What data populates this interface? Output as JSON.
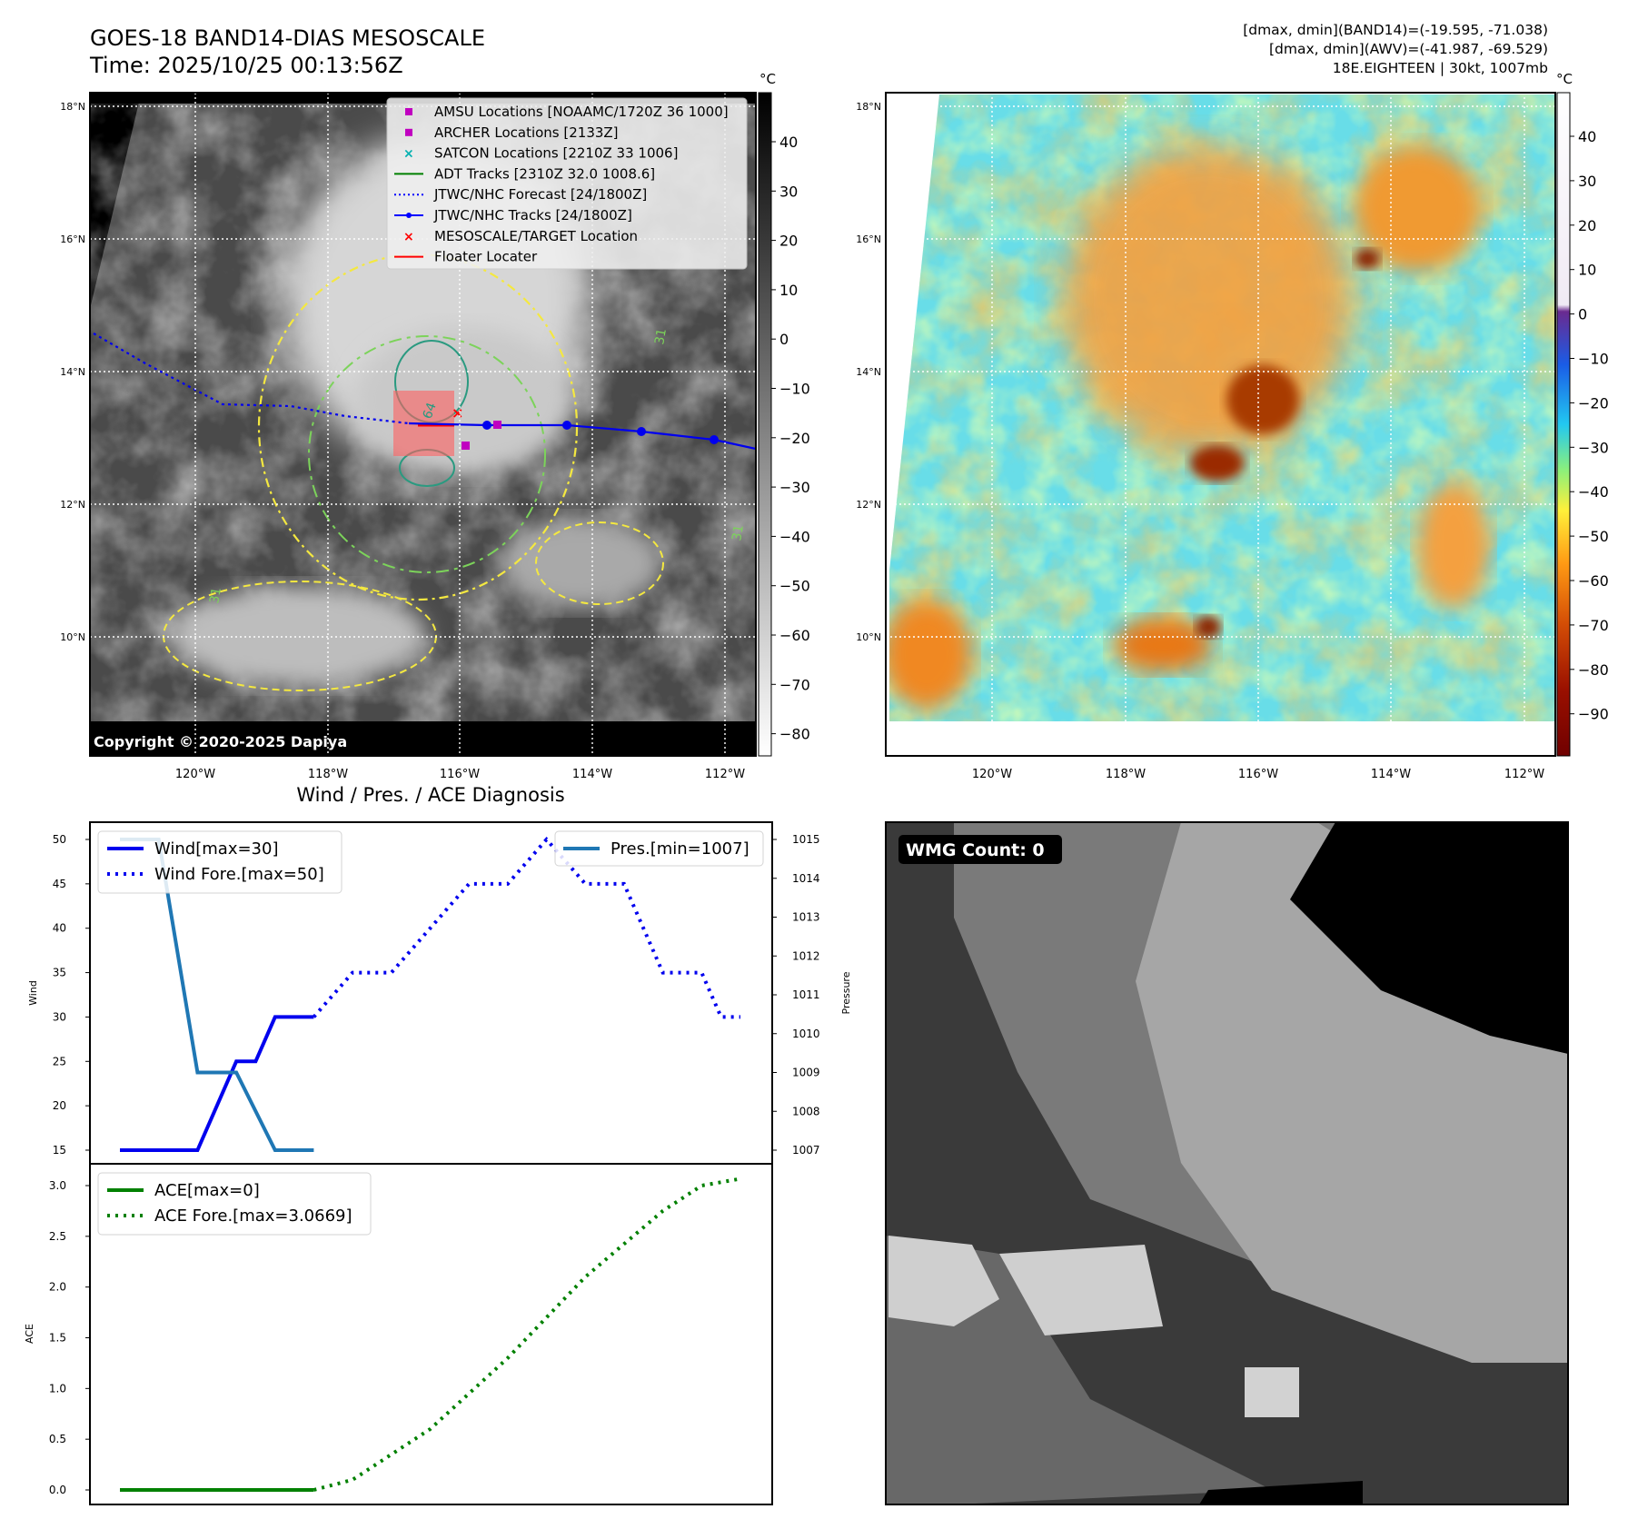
{
  "header": {
    "title_line1": "GOES-18 BAND14-DIAS MESOSCALE",
    "title_line2": "Time: 2025/10/25 00:13:56Z",
    "right_line1": "[dmax, dmin](BAND14)=(-19.595, -71.038)",
    "right_line2": "[dmax, dmin](AWV)=(-41.987, -69.529)",
    "right_line3": "18E.EIGHTEEN | 30kt, 1007mb"
  },
  "maps": {
    "lat_labels": [
      "18°N",
      "16°N",
      "14°N",
      "12°N",
      "10°N"
    ],
    "lon_labels": [
      "120°W",
      "118°W",
      "116°W",
      "114°W",
      "112°W"
    ],
    "copyright": "Copyright © 2020-2025 Dapiya",
    "contour_labels": [
      "31",
      "31",
      "31",
      "64"
    ]
  },
  "legend": {
    "items": [
      {
        "label": "AMSU Locations [NOAAMC/1720Z 36 1000]",
        "color": "#c000c0",
        "icon": "square-marker"
      },
      {
        "label": "ARCHER Locations [2133Z]",
        "color": "#c000c0",
        "icon": "square-marker"
      },
      {
        "label": "SATCON Locations [2210Z 33 1006]",
        "color": "#00b0b0",
        "icon": "x-marker"
      },
      {
        "label": "ADT Tracks [2310Z 32.0 1008.6]",
        "color": "#008000",
        "icon": "line"
      },
      {
        "label": "JTWC/NHC Forecast [24/1800Z]",
        "color": "#0000ff",
        "icon": "dotted-line"
      },
      {
        "label": "JTWC/NHC Tracks [24/1800Z]",
        "color": "#0000ff",
        "icon": "line-dot"
      },
      {
        "label": "MESOSCALE/TARGET Location",
        "color": "#ff0000",
        "icon": "x-marker"
      },
      {
        "label": "Floater Locater",
        "color": "#ff0000",
        "icon": "line"
      }
    ]
  },
  "colorbars": {
    "unit": "°C",
    "gray_ticks": [
      "40",
      "30",
      "20",
      "10",
      "0",
      "−10",
      "−20",
      "−30",
      "−40",
      "−50",
      "−60",
      "−70",
      "−80"
    ],
    "color_ticks": [
      "40",
      "30",
      "20",
      "10",
      "0",
      "−10",
      "−20",
      "−30",
      "−40",
      "−50",
      "−60",
      "−70",
      "−80",
      "−90"
    ],
    "color_stops": [
      "#ffffff",
      "#7a2c98",
      "#1a5ce6",
      "#22c8f0",
      "#8df07a",
      "#fff03a",
      "#ff9a14",
      "#d44e06",
      "#7a0000"
    ]
  },
  "diagnosis": {
    "title": "Wind / Pres. / ACE Diagnosis",
    "wind_ylabel": "Wind",
    "pres_ylabel": "Pressure",
    "ace_ylabel": "ACE",
    "wind_legend": [
      "Wind[max=30]",
      "Wind Fore.[max=50]"
    ],
    "pres_legend": "Pres.[min=1007]",
    "ace_legend": [
      "ACE[max=0]",
      "ACE Fore.[max=3.0669]"
    ],
    "wind_ticks": [
      "15",
      "20",
      "25",
      "30",
      "35",
      "40",
      "45",
      "50"
    ],
    "pres_ticks": [
      "1007",
      "1008",
      "1009",
      "1010",
      "1011",
      "1012",
      "1013",
      "1014",
      "1015"
    ],
    "ace_ticks": [
      "0.0",
      "0.5",
      "1.0",
      "1.5",
      "2.0",
      "2.5",
      "3.0"
    ]
  },
  "chart_data": [
    {
      "type": "line",
      "title": "Wind / Pres. / ACE Diagnosis",
      "ylabel": "Wind",
      "ylim": [
        14,
        51
      ],
      "series": [
        {
          "name": "Wind[max=30]",
          "style": "solid",
          "color": "#0000ee",
          "x": [
            0,
            2,
            3,
            3.5,
            4,
            5
          ],
          "values": [
            15,
            15,
            25,
            25,
            30,
            30
          ]
        },
        {
          "name": "Wind Fore.[max=50]",
          "style": "dotted",
          "color": "#0000ee",
          "x": [
            5,
            6,
            7,
            9,
            10,
            11,
            12,
            13,
            14,
            15,
            15.5,
            16
          ],
          "values": [
            30,
            35,
            35,
            45,
            45,
            50,
            45,
            45,
            35,
            35,
            30,
            30
          ]
        }
      ]
    },
    {
      "type": "line",
      "ylabel": "Pressure",
      "ylim": [
        1006.8,
        1015.2
      ],
      "series": [
        {
          "name": "Pres.[min=1007]",
          "style": "solid",
          "color": "#1f77b4",
          "x": [
            0,
            1,
            2,
            3,
            4,
            5
          ],
          "values": [
            1015,
            1015,
            1009,
            1009,
            1007,
            1007
          ]
        }
      ]
    },
    {
      "type": "line",
      "ylabel": "ACE",
      "ylim": [
        -0.1,
        3.2
      ],
      "series": [
        {
          "name": "ACE[max=0]",
          "style": "solid",
          "color": "#008000",
          "x": [
            0,
            5
          ],
          "values": [
            0,
            0
          ]
        },
        {
          "name": "ACE Fore.[max=3.0669]",
          "style": "dotted",
          "color": "#008000",
          "x": [
            5,
            6,
            8,
            10,
            12,
            14,
            15,
            16
          ],
          "values": [
            0,
            0.1,
            0.6,
            1.3,
            2.1,
            2.75,
            3.0,
            3.0669
          ]
        }
      ]
    }
  ],
  "wmg": {
    "label": "WMG Count: 0"
  }
}
